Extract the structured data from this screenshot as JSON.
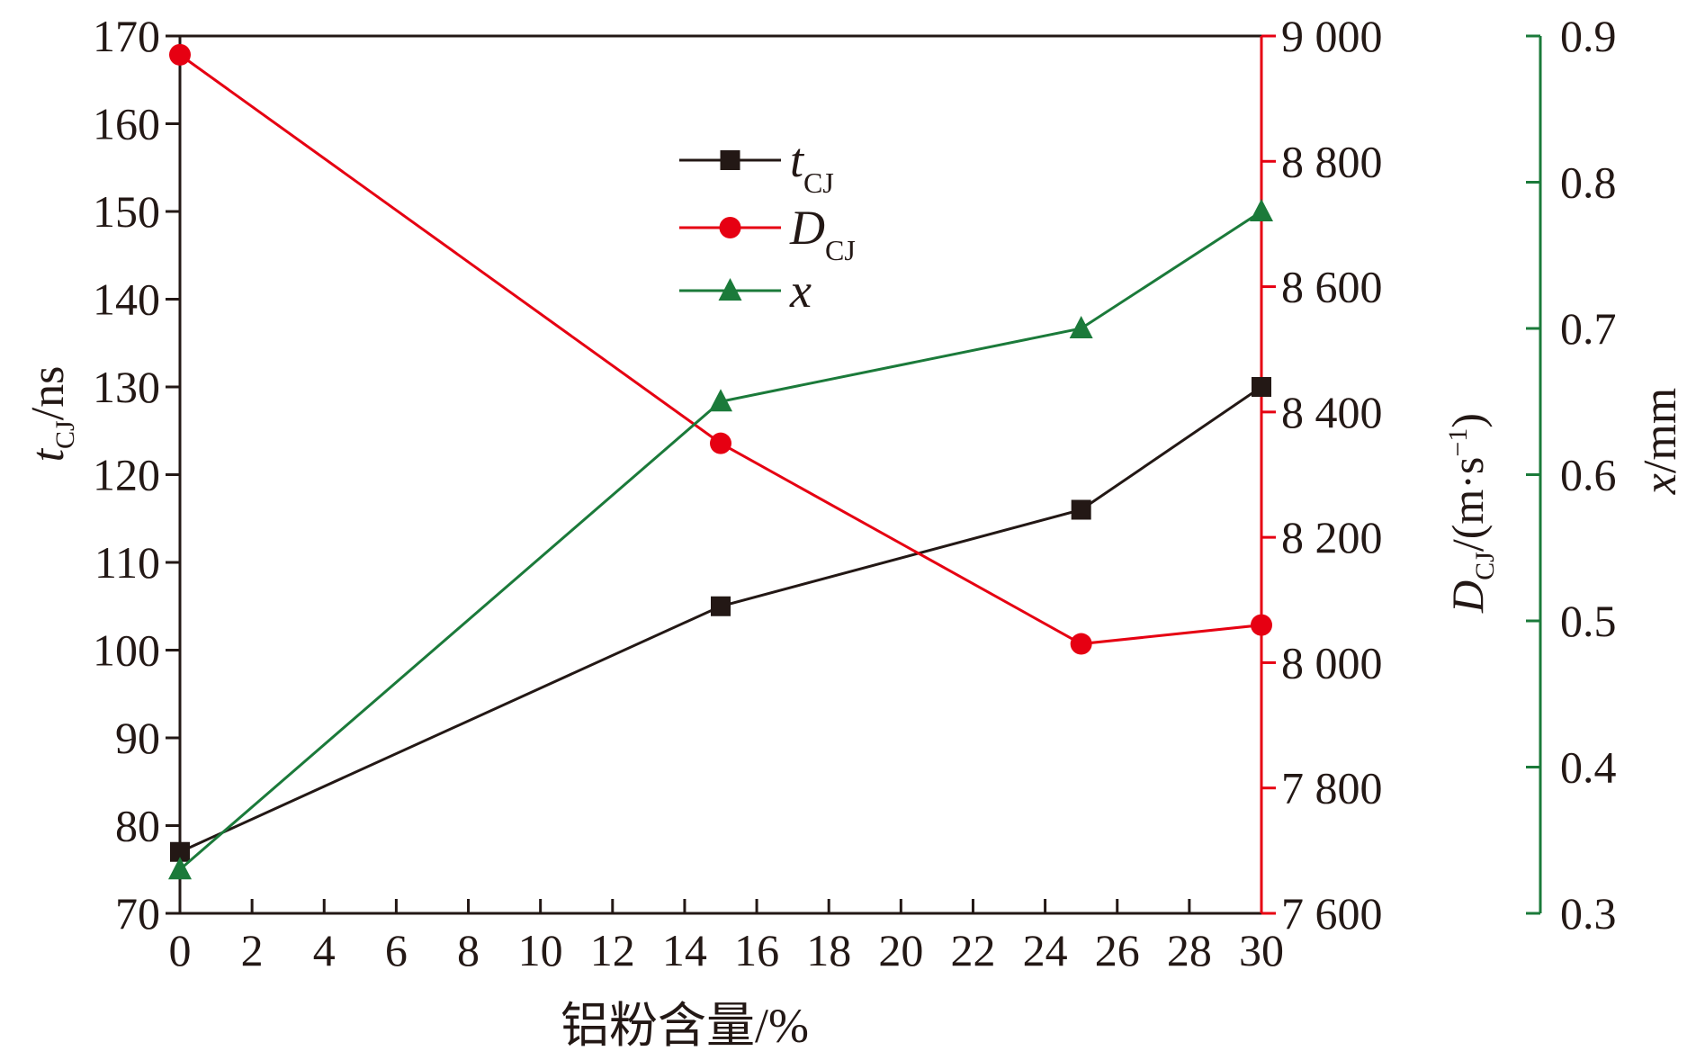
{
  "chart_data": {
    "type": "line",
    "x": [
      0,
      15,
      25,
      30
    ],
    "xlabel": "铝粉含量/%",
    "xlim": [
      0,
      30
    ],
    "xticks": [
      "0",
      "2",
      "4",
      "6",
      "8",
      "10",
      "12",
      "14",
      "16",
      "18",
      "20",
      "22",
      "24",
      "26",
      "28",
      "30"
    ],
    "xtick_values": [
      0,
      2,
      4,
      6,
      8,
      10,
      12,
      14,
      16,
      18,
      20,
      22,
      24,
      26,
      28,
      30
    ],
    "axes": {
      "left": {
        "label_main": "t",
        "label_sub": "CJ",
        "label_unit": "/ns",
        "ylim": [
          70,
          170
        ],
        "ticks": [
          "70",
          "80",
          "90",
          "100",
          "110",
          "120",
          "130",
          "140",
          "150",
          "160",
          "170"
        ],
        "tick_values": [
          70,
          80,
          90,
          100,
          110,
          120,
          130,
          140,
          150,
          160,
          170
        ],
        "color": "#231815"
      },
      "right1": {
        "label_main": "D",
        "label_sub": "CJ",
        "label_unit": "/(m·s",
        "label_sup": "−1",
        "label_close": ")",
        "ylim": [
          7600,
          9000
        ],
        "ticks": [
          "7 600",
          "7 800",
          "8 000",
          "8 200",
          "8 400",
          "8 600",
          "8 800",
          "9 000"
        ],
        "tick_values": [
          7600,
          7800,
          8000,
          8200,
          8400,
          8600,
          8800,
          9000
        ],
        "color": "#e60012"
      },
      "right2": {
        "label_main": "x",
        "label_unit": "/mm",
        "ylim": [
          0.3,
          0.9
        ],
        "ticks": [
          "0.3",
          "0.4",
          "0.5",
          "0.6",
          "0.7",
          "0.8",
          "0.9"
        ],
        "tick_values": [
          0.3,
          0.4,
          0.5,
          0.6,
          0.7,
          0.8,
          0.9
        ],
        "color": "#1b7a3a"
      }
    },
    "series": [
      {
        "name": "t",
        "name_sub": "CJ",
        "axis": "left",
        "marker": "square",
        "color": "#231815",
        "values": [
          77,
          105,
          116,
          130
        ]
      },
      {
        "name": "D",
        "name_sub": "CJ",
        "axis": "right1",
        "marker": "circle",
        "color": "#e60012",
        "values": [
          8970,
          8350,
          8030,
          8060
        ]
      },
      {
        "name": "x",
        "name_sub": "",
        "axis": "right2",
        "marker": "triangle",
        "color": "#1b7a3a",
        "values": [
          0.33,
          0.65,
          0.7,
          0.78
        ]
      }
    ],
    "legend_position": "top-center",
    "grid": false
  }
}
